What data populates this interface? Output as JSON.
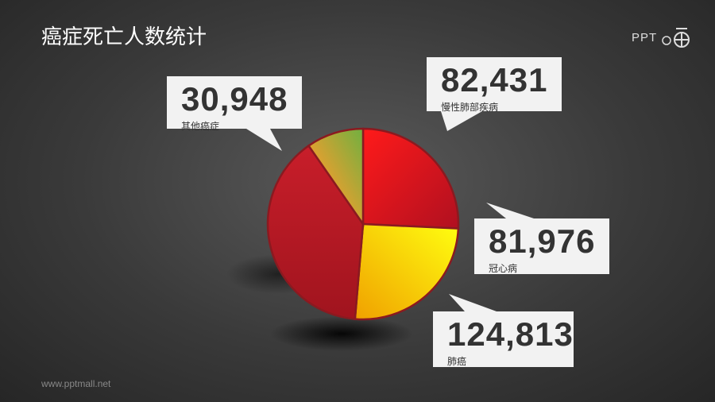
{
  "title": "癌症死亡人数统计",
  "footer": "www.pptmall.net",
  "logo": "PPT",
  "chart_data": {
    "type": "pie",
    "title": "癌症死亡人数统计",
    "start": "top",
    "direction": "clockwise",
    "slices": [
      {
        "label": "慢性肺部疾病",
        "value": 82431,
        "display": "82,431",
        "color": "#e0141e"
      },
      {
        "label": "冠心病",
        "value": 81976,
        "display": "81,976",
        "color": "#ffd800"
      },
      {
        "label": "肺癌",
        "value": 124813,
        "display": "124,813",
        "color": "#b01c28"
      },
      {
        "label": "其他癌症",
        "value": 30948,
        "display": "30,948",
        "color": "#c8a030"
      }
    ]
  }
}
